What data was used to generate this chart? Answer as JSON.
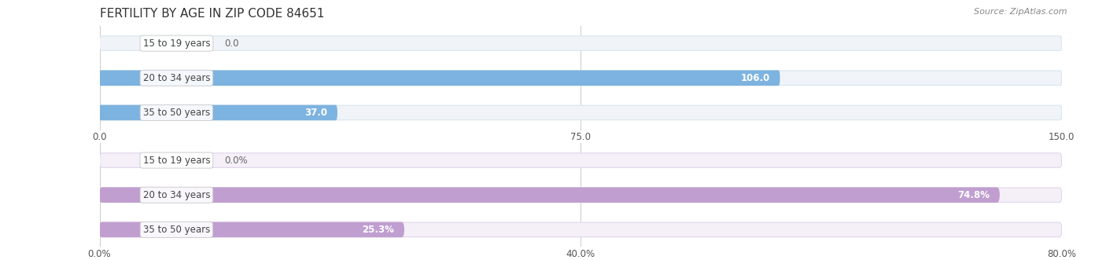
{
  "title": "FERTILITY BY AGE IN ZIP CODE 84651",
  "source": "Source: ZipAtlas.com",
  "top_chart": {
    "categories": [
      "15 to 19 years",
      "20 to 34 years",
      "35 to 50 years"
    ],
    "values": [
      0.0,
      106.0,
      37.0
    ],
    "value_labels": [
      "0.0",
      "106.0",
      "37.0"
    ],
    "xlim": [
      0,
      150
    ],
    "xticks": [
      0.0,
      75.0,
      150.0
    ],
    "xtick_labels": [
      "0.0",
      "75.0",
      "150.0"
    ],
    "bar_color": "#7db3e0",
    "bar_color_end": "#5591cc",
    "bar_edge_color": "#7ab0dc",
    "bg_color": "#f0f4f8",
    "bg_edge_color": "#d8e4ef",
    "val_label_color_inside": "#ffffff",
    "val_label_color_outside": "#666666"
  },
  "bottom_chart": {
    "categories": [
      "15 to 19 years",
      "20 to 34 years",
      "35 to 50 years"
    ],
    "values": [
      0.0,
      74.8,
      25.3
    ],
    "value_labels": [
      "0.0%",
      "74.8%",
      "25.3%"
    ],
    "xlim": [
      0,
      80
    ],
    "xticks": [
      0.0,
      40.0,
      80.0
    ],
    "xtick_labels": [
      "0.0%",
      "40.0%",
      "80.0%"
    ],
    "bar_color": "#c09ed0",
    "bar_color_end": "#a87dc0",
    "bar_edge_color": "#c09ed0",
    "bg_color": "#f5f0f8",
    "bg_edge_color": "#e0d4ec",
    "val_label_color_inside": "#ffffff",
    "val_label_color_outside": "#666666"
  },
  "bar_height": 0.42,
  "title_fontsize": 11,
  "label_fontsize": 8.5,
  "tick_fontsize": 8.5,
  "category_fontsize": 8.5,
  "title_color": "#333333",
  "source_color": "#888888",
  "cat_box_color": "#ffffff",
  "cat_text_color": "#444444"
}
